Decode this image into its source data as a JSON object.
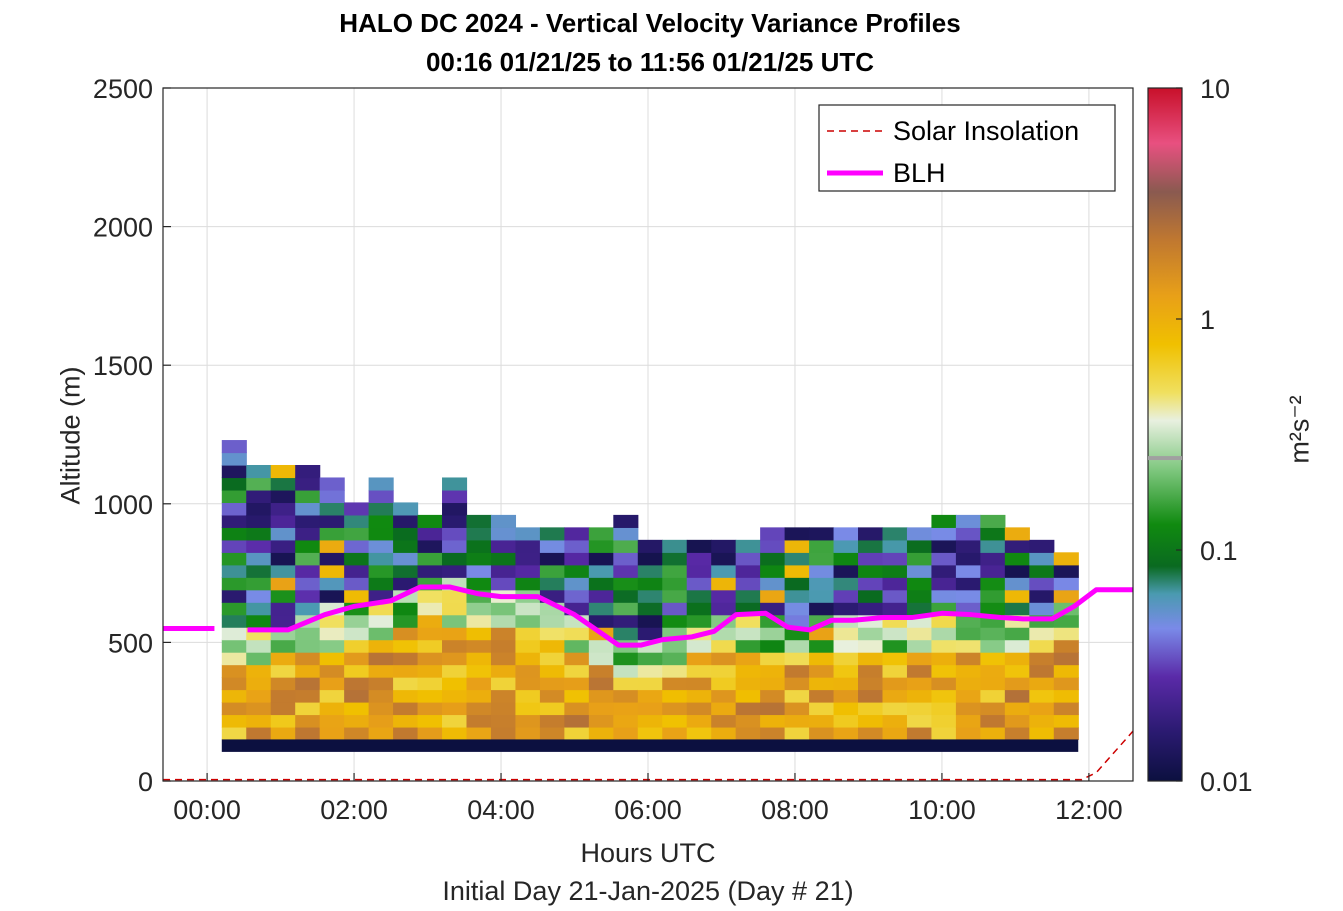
{
  "title_line1": "HALO DC 2024 - Vertical Velocity Variance Profiles",
  "title_line2": "00:16 01/21/25 to 11:56 01/21/25  UTC",
  "xlabel": "Hours UTC",
  "xsublabel": "Initial Day 21-Jan-2025 (Day # 21)",
  "ylabel": "Altitude (m)",
  "colorbar_label": "m²s⁻²",
  "chart_data": {
    "type": "heatmap",
    "x_unit": "hours UTC",
    "xlim": [
      -0.6,
      12.6
    ],
    "ylim": [
      0,
      2500
    ],
    "grid": true,
    "x_ticks": [
      0,
      2,
      4,
      6,
      8,
      10,
      12
    ],
    "x_tick_labels": [
      "00:00",
      "02:00",
      "04:00",
      "06:00",
      "08:00",
      "10:00",
      "12:00"
    ],
    "y_ticks": [
      0,
      500,
      1000,
      1500,
      2000,
      2500
    ],
    "y_tick_labels": [
      "0",
      "500",
      "1000",
      "1500",
      "2000",
      "2500"
    ],
    "colorbar": {
      "scale": "log",
      "range": [
        0.01,
        10
      ],
      "ticks": [
        0.01,
        0.1,
        1,
        10
      ],
      "tick_labels": [
        "0.01",
        "0.1",
        "1",
        "10"
      ],
      "colormap": "blue-purple-green-yellow-orange-brown-red"
    },
    "legend": {
      "position": "top-right",
      "entries": [
        {
          "label": "Solar Insolation",
          "color": "#cc0000",
          "style": "dashed"
        },
        {
          "label": "BLH",
          "color": "#ff00ff",
          "style": "solid"
        }
      ]
    },
    "heatmap_bins": {
      "time_start": 0.2,
      "time_step": 0.333,
      "n_columns": 35,
      "altitude_start": 105,
      "altitude_step": 45,
      "column_tops_m": [
        1200,
        1100,
        1100,
        1100,
        1060,
        1000,
        1060,
        980,
        940,
        1060,
        940,
        940,
        900,
        900,
        900,
        900,
        940,
        860,
        860,
        860,
        860,
        860,
        900,
        900,
        900,
        900,
        900,
        900,
        900,
        940,
        940,
        940,
        900,
        860,
        820
      ],
      "surface_row_m": [
        105,
        150
      ]
    },
    "series": [
      {
        "name": "BLH",
        "x": [
          -0.6,
          0.1,
          0.55,
          1.1,
          1.6,
          2.0,
          2.5,
          2.9,
          3.3,
          3.7,
          4.0,
          4.5,
          5.0,
          5.3,
          5.6,
          5.9,
          6.2,
          6.6,
          6.9,
          7.2,
          7.6,
          7.9,
          8.2,
          8.5,
          8.8,
          9.2,
          9.6,
          10.0,
          10.4,
          10.8,
          11.1,
          11.5,
          11.8,
          12.1,
          12.6
        ],
        "y": [
          550,
          550,
          545,
          545,
          600,
          630,
          650,
          700,
          700,
          675,
          665,
          665,
          600,
          545,
          490,
          490,
          510,
          520,
          540,
          600,
          605,
          555,
          545,
          580,
          580,
          590,
          590,
          605,
          600,
          590,
          585,
          585,
          630,
          690,
          690
        ]
      },
      {
        "name": "Solar Insolation",
        "x": [
          -0.6,
          11.9,
          12.1,
          12.4,
          12.6
        ],
        "y": [
          5,
          5,
          30,
          120,
          180
        ]
      }
    ]
  }
}
